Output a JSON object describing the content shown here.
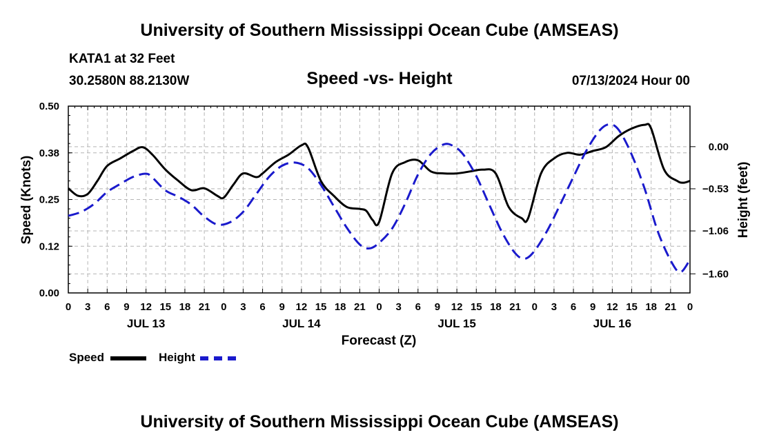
{
  "header": {
    "title": "University of Southern Mississippi Ocean Cube (AMSEAS)",
    "station": "KATA1 at 32 Feet",
    "coords": "30.2580N  88.2130W",
    "subtitle": "Speed -vs- Height",
    "datetime": "07/13/2024 Hour 00"
  },
  "footer": {
    "title": "University of Southern Mississippi Ocean Cube (AMSEAS)"
  },
  "legend": {
    "speed_label": "Speed",
    "height_label": "Height"
  },
  "colors": {
    "speed": "#000000",
    "height": "#1a1acc",
    "grid": "#b4b4b4"
  },
  "chart_data": {
    "type": "line",
    "xlabel": "Forecast (Z)",
    "ylabel_left": "Speed (Knots)",
    "ylabel_right": "Height (feet)",
    "x_range_hours": [
      0,
      96
    ],
    "ylim_left": [
      0,
      0.5
    ],
    "ylim_right": [
      -1.84,
      0.51
    ],
    "x_tick_labels": [
      "0",
      "3",
      "6",
      "9",
      "12",
      "15",
      "18",
      "21",
      "0",
      "3",
      "6",
      "9",
      "12",
      "15",
      "18",
      "21",
      "0",
      "3",
      "6",
      "9",
      "12",
      "15",
      "18",
      "21",
      "0",
      "3",
      "6",
      "9",
      "12",
      "15",
      "18",
      "21",
      "0"
    ],
    "date_labels": [
      {
        "label": "JUL 13",
        "hour": 12
      },
      {
        "label": "JUL 14",
        "hour": 36
      },
      {
        "label": "JUL 15",
        "hour": 60
      },
      {
        "label": "JUL 16",
        "hour": 84
      }
    ],
    "left_ticks": [
      {
        "value": 0.0,
        "label": "0.00"
      },
      {
        "value": 0.125,
        "label": "0.12"
      },
      {
        "value": 0.25,
        "label": "0.25"
      },
      {
        "value": 0.375,
        "label": "0.38"
      },
      {
        "value": 0.5,
        "label": "0.50"
      }
    ],
    "right_ticks": [
      {
        "value": 0.0,
        "label": "0.00"
      },
      {
        "value": -0.53,
        "label": "−0.53"
      },
      {
        "value": -1.06,
        "label": "−1.06"
      },
      {
        "value": -1.6,
        "label": "−1.60"
      }
    ],
    "series": [
      {
        "name": "Speed",
        "axis": "left",
        "style": "solid",
        "points": [
          [
            0,
            0.28
          ],
          [
            1.5,
            0.26
          ],
          [
            3,
            0.265
          ],
          [
            4.5,
            0.3
          ],
          [
            6,
            0.34
          ],
          [
            8,
            0.36
          ],
          [
            10,
            0.38
          ],
          [
            11.5,
            0.39
          ],
          [
            13,
            0.37
          ],
          [
            15,
            0.33
          ],
          [
            17,
            0.3
          ],
          [
            19,
            0.275
          ],
          [
            21,
            0.28
          ],
          [
            23,
            0.26
          ],
          [
            24,
            0.255
          ],
          [
            25.5,
            0.29
          ],
          [
            27,
            0.32
          ],
          [
            29,
            0.31
          ],
          [
            30,
            0.32
          ],
          [
            32,
            0.35
          ],
          [
            34,
            0.37
          ],
          [
            36,
            0.395
          ],
          [
            37,
            0.39
          ],
          [
            39,
            0.3
          ],
          [
            41,
            0.26
          ],
          [
            43,
            0.23
          ],
          [
            45,
            0.225
          ],
          [
            46,
            0.22
          ],
          [
            47,
            0.195
          ],
          [
            48,
            0.19
          ],
          [
            50,
            0.32
          ],
          [
            52,
            0.35
          ],
          [
            54,
            0.355
          ],
          [
            56,
            0.325
          ],
          [
            58,
            0.32
          ],
          [
            60,
            0.32
          ],
          [
            62,
            0.325
          ],
          [
            64,
            0.33
          ],
          [
            66,
            0.32
          ],
          [
            68,
            0.23
          ],
          [
            70,
            0.2
          ],
          [
            71,
            0.2
          ],
          [
            73,
            0.32
          ],
          [
            75,
            0.36
          ],
          [
            77,
            0.375
          ],
          [
            79,
            0.37
          ],
          [
            81,
            0.38
          ],
          [
            83,
            0.39
          ],
          [
            85,
            0.42
          ],
          [
            87,
            0.44
          ],
          [
            89,
            0.45
          ],
          [
            90,
            0.44
          ],
          [
            92,
            0.33
          ],
          [
            94,
            0.3
          ],
          [
            95,
            0.295
          ],
          [
            96,
            0.3
          ]
        ]
      },
      {
        "name": "Height",
        "axis": "right",
        "style": "dashed",
        "points": [
          [
            0,
            -0.87
          ],
          [
            2,
            -0.82
          ],
          [
            4,
            -0.72
          ],
          [
            6,
            -0.57
          ],
          [
            8,
            -0.47
          ],
          [
            10,
            -0.38
          ],
          [
            12,
            -0.34
          ],
          [
            13,
            -0.39
          ],
          [
            15,
            -0.55
          ],
          [
            17,
            -0.63
          ],
          [
            19,
            -0.73
          ],
          [
            21,
            -0.88
          ],
          [
            23,
            -0.98
          ],
          [
            25,
            -0.95
          ],
          [
            27,
            -0.82
          ],
          [
            29,
            -0.6
          ],
          [
            31,
            -0.38
          ],
          [
            33,
            -0.24
          ],
          [
            35,
            -0.2
          ],
          [
            37,
            -0.27
          ],
          [
            39,
            -0.48
          ],
          [
            41,
            -0.75
          ],
          [
            43,
            -1.02
          ],
          [
            45,
            -1.23
          ],
          [
            46.5,
            -1.28
          ],
          [
            48,
            -1.21
          ],
          [
            50,
            -1.03
          ],
          [
            52,
            -0.72
          ],
          [
            54,
            -0.35
          ],
          [
            56,
            -0.09
          ],
          [
            58,
            0.03
          ],
          [
            59.5,
            0.005
          ],
          [
            61,
            -0.1
          ],
          [
            63,
            -0.37
          ],
          [
            65,
            -0.73
          ],
          [
            67,
            -1.08
          ],
          [
            69,
            -1.34
          ],
          [
            70.5,
            -1.41
          ],
          [
            72,
            -1.31
          ],
          [
            74,
            -1.05
          ],
          [
            76,
            -0.72
          ],
          [
            78,
            -0.38
          ],
          [
            80,
            -0.05
          ],
          [
            82,
            0.2
          ],
          [
            83.5,
            0.28
          ],
          [
            85,
            0.21
          ],
          [
            87,
            -0.1
          ],
          [
            89,
            -0.53
          ],
          [
            91,
            -1.06
          ],
          [
            93,
            -1.43
          ],
          [
            94.5,
            -1.58
          ],
          [
            96,
            -1.42
          ]
        ]
      }
    ]
  }
}
